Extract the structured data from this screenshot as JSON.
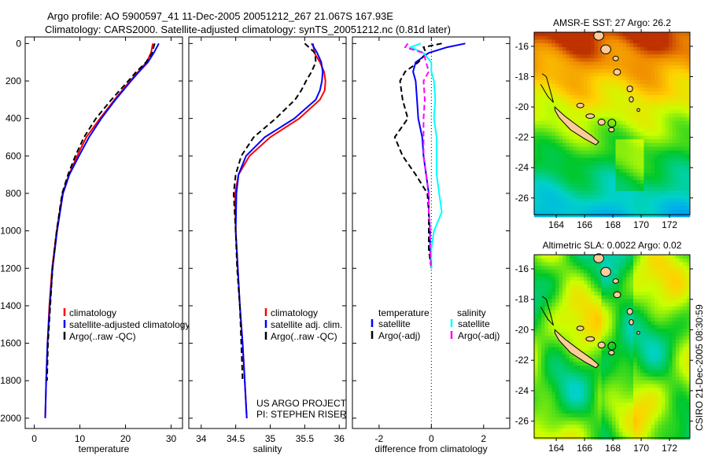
{
  "header": {
    "line1": "Argo profile: AO 5900597_41 11-Dec-2005 20051212_267 21.067S 167.93E",
    "line2": "Climatology: CARS2000. Satellite-adjusted climatology: synTS_20051212.nc (0.81d later)"
  },
  "credit": {
    "project": "US ARGO PROJECT",
    "pi": "PI: STEPHEN RISER",
    "stamp": "CSIRO 21-Dec-2005 08:30:59"
  },
  "colors": {
    "climatology": "#ff0000",
    "satellite": "#0000ff",
    "argo": "#000000",
    "sal_satellite": "#00ffff",
    "sal_argo": "#ff00ff"
  },
  "chart_data": [
    {
      "type": "line",
      "title": "",
      "xlabel": "temperature",
      "ylabel": "",
      "xlim": [
        -2,
        32.5
      ],
      "ylim": [
        2055,
        -35
      ],
      "xticks": [
        "0",
        "10",
        "20",
        "30"
      ],
      "xtick_values": [
        0,
        10,
        20,
        30
      ],
      "yticks": [
        "0",
        "200",
        "400",
        "600",
        "800",
        "1000",
        "1200",
        "1400",
        "1600",
        "1800",
        "2000"
      ],
      "ytick_values": [
        0,
        200,
        400,
        600,
        800,
        1000,
        1200,
        1400,
        1600,
        1800,
        2000
      ],
      "depth": [
        0,
        50,
        100,
        150,
        200,
        300,
        400,
        500,
        600,
        700,
        800,
        1000,
        1200,
        1400,
        1600,
        1800,
        2000
      ],
      "legend": [
        "climatology",
        "satellite-adjusted climatology",
        "Argo(..raw -QC)"
      ],
      "series": [
        {
          "name": "climatology",
          "color": "#ff0000",
          "values": [
            26.0,
            25.6,
            24.6,
            22.8,
            21.0,
            17.6,
            14.4,
            11.4,
            9.4,
            7.6,
            6.2,
            4.9,
            3.9,
            3.3,
            2.9,
            2.6,
            2.4
          ]
        },
        {
          "name": "satellite-adjusted climatology",
          "color": "#0000ff",
          "values": [
            27.3,
            26.2,
            24.9,
            23.0,
            21.2,
            17.8,
            14.7,
            12.0,
            9.8,
            7.7,
            6.3,
            5.0,
            4.0,
            3.4,
            2.9,
            2.6,
            2.4
          ]
        },
        {
          "name": "Argo(..raw -QC)",
          "color": "#000000",
          "dashed": true,
          "values": [
            26.4,
            25.8,
            24.5,
            22.4,
            20.6,
            16.9,
            13.5,
            10.9,
            9.0,
            7.4,
            6.1,
            4.9,
            4.0,
            3.5,
            3.0,
            2.8,
            null
          ]
        }
      ]
    },
    {
      "type": "line",
      "xlabel": "salinity",
      "xlim": [
        33.82,
        36.1
      ],
      "ylim": [
        2055,
        -35
      ],
      "xticks": [
        "34",
        "34.5",
        "35",
        "35.5",
        "36"
      ],
      "xtick_values": [
        34,
        34.5,
        35,
        35.5,
        36
      ],
      "depth": [
        0,
        50,
        100,
        150,
        200,
        250,
        300,
        400,
        500,
        600,
        700,
        800,
        1000,
        1200,
        1400,
        1600,
        1800,
        2000
      ],
      "legend": [
        "climatology",
        "satellite adj. clim.",
        "Argo(..raw -QC)"
      ],
      "series": [
        {
          "name": "climatology",
          "color": "#ff0000",
          "values": [
            35.62,
            35.64,
            35.72,
            35.78,
            35.8,
            35.79,
            35.72,
            35.42,
            35.0,
            34.7,
            34.54,
            34.49,
            34.5,
            34.53,
            34.56,
            34.6,
            34.63,
            34.66
          ]
        },
        {
          "name": "satellite adj. clim.",
          "color": "#0000ff",
          "values": [
            35.6,
            35.68,
            35.74,
            35.76,
            35.75,
            35.72,
            35.66,
            35.35,
            34.92,
            34.65,
            34.54,
            34.51,
            34.5,
            34.53,
            34.56,
            34.6,
            34.63,
            34.66
          ]
        },
        {
          "name": "Argo(..raw -QC)",
          "color": "#000000",
          "dashed": true,
          "values": [
            35.5,
            35.65,
            35.66,
            35.6,
            35.52,
            35.45,
            35.36,
            35.08,
            34.76,
            34.58,
            34.5,
            34.47,
            34.5,
            34.52,
            34.56,
            34.58,
            34.6,
            null
          ]
        }
      ]
    },
    {
      "type": "line",
      "xlabel": "difference from climatology",
      "xlim": [
        -3.02,
        3.0
      ],
      "ylim": [
        2055,
        -35
      ],
      "xticks": [
        "-2",
        "0",
        "2"
      ],
      "xtick_values": [
        -2,
        0,
        2
      ],
      "depth": [
        0,
        20,
        50,
        100,
        150,
        200,
        300,
        400,
        500,
        600,
        700,
        800,
        900,
        1000,
        1100,
        1200
      ],
      "legend_headers": [
        "temperature",
        "salinity"
      ],
      "legend": [
        "satellite",
        "Argo(-adj)",
        "satellite",
        "Argo(-adj)"
      ],
      "series": [
        {
          "name": "temperature satellite",
          "color": "#0000ff",
          "values": [
            1.3,
            0.6,
            -0.1,
            -0.6,
            -0.7,
            -0.6,
            -0.55,
            -0.5,
            -0.35,
            -0.3,
            -0.2,
            -0.1,
            -0.1,
            -0.05,
            -0.05,
            0
          ]
        },
        {
          "name": "temperature Argo(-adj)",
          "color": "#000000",
          "dashed": true,
          "values": [
            0.4,
            -0.3,
            -0.2,
            -0.5,
            -1.0,
            -1.2,
            -1.1,
            -0.9,
            -1.4,
            -1.1,
            -0.6,
            -0.15,
            -0.1,
            -0.1,
            -0.1,
            0
          ]
        },
        {
          "name": "salinity satellite",
          "color": "#00ffff",
          "values": [
            -0.4,
            -0.8,
            -0.3,
            0.0,
            0.0,
            0.1,
            0.15,
            0.1,
            0.2,
            0.2,
            0.2,
            0.3,
            0.4,
            0.1,
            0.0,
            0.0
          ]
        },
        {
          "name": "salinity Argo(-adj)",
          "color": "#ff00ff",
          "dashed": true,
          "values": [
            -0.9,
            -1.0,
            -0.3,
            -0.2,
            -0.1,
            -0.3,
            -0.25,
            -0.3,
            -0.3,
            -0.3,
            -0.2,
            -0.1,
            -0.1,
            -0.05,
            -0.05,
            0
          ]
        }
      ]
    },
    {
      "type": "heatmap",
      "title": "AMSR-E SST: 27 Argo: 26.2",
      "xlim": [
        162.44,
        173.44
      ],
      "ylim": [
        -15.07,
        -27.1
      ],
      "xticks": [
        "164",
        "166",
        "168",
        "170",
        "172"
      ],
      "xtick_values": [
        164,
        166,
        168,
        170,
        172
      ],
      "yticks": [
        "-16",
        "-18",
        "-20",
        "-22",
        "-24",
        "-26"
      ],
      "ytick_values": [
        -16,
        -18,
        -20,
        -22,
        -24,
        -26
      ],
      "argo_position": [
        167.93,
        -21.067
      ]
    },
    {
      "type": "heatmap",
      "title": "Altimetric SLA: 0.0022 Argo: 0.02",
      "xlim": [
        162.44,
        173.44
      ],
      "ylim": [
        -15.07,
        -27.1
      ],
      "xticks": [
        "164",
        "166",
        "168",
        "170",
        "172"
      ],
      "xtick_values": [
        164,
        166,
        168,
        170,
        172
      ],
      "yticks": [
        "-16",
        "-18",
        "-20",
        "-22",
        "-24",
        "-26"
      ],
      "ytick_values": [
        -16,
        -18,
        -20,
        -22,
        -24,
        -26
      ],
      "argo_position": [
        167.93,
        -21.067
      ]
    }
  ]
}
